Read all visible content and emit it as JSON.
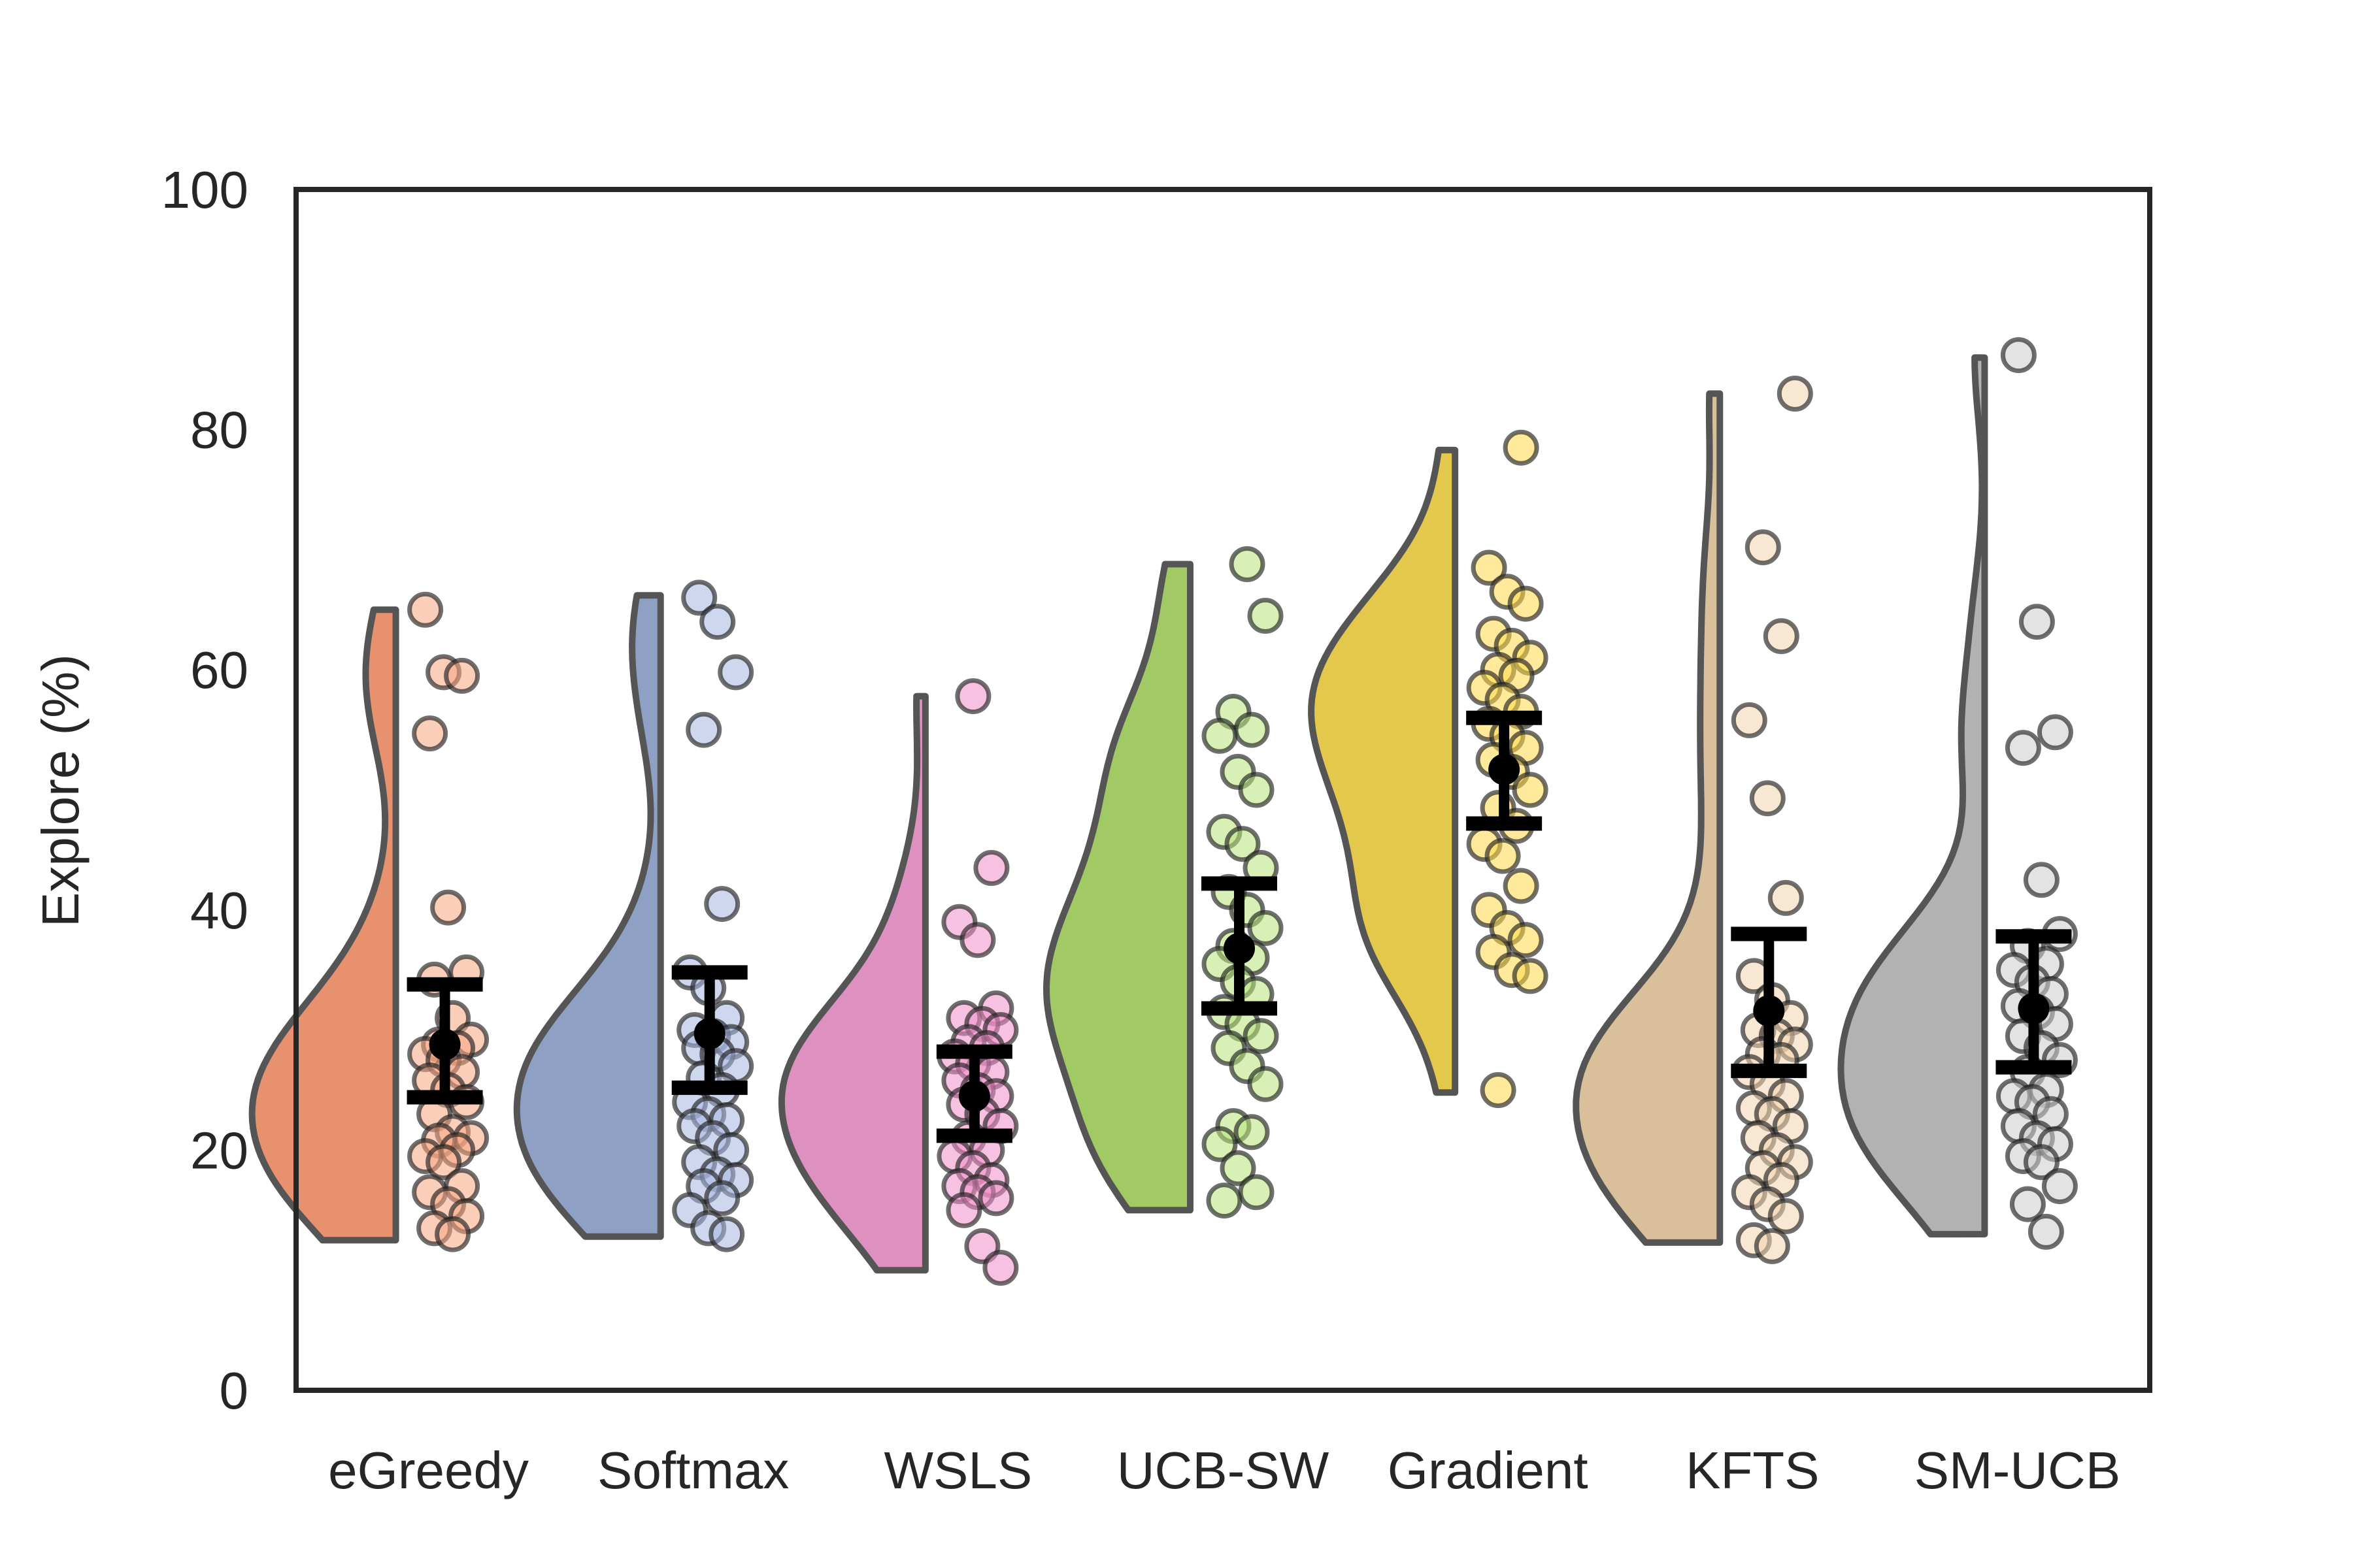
{
  "chart_data": {
    "type": "raincloud",
    "ylabel": "Explore (%)",
    "xlabel": "",
    "ylim": [
      0,
      100
    ],
    "yticks": [
      0,
      20,
      40,
      60,
      80,
      100
    ],
    "grid": false,
    "categories": [
      "eGreedy",
      "Softmax",
      "WSLS",
      "UCB-SW",
      "Gradient",
      "KFTS",
      "SM-UCB"
    ],
    "groups": [
      {
        "name": "eGreedy",
        "color": "#E8916E",
        "point_color": "#F7A582",
        "range": [
          12.5,
          65.0
        ],
        "mean": 28.8,
        "err_low": 24.4,
        "err_high": 33.8,
        "points": [
          65.0,
          59.8,
          59.5,
          54.7,
          40.2,
          34.8,
          34.2,
          31.0,
          29.2,
          28.8,
          28.5,
          28.0,
          27.5,
          26.5,
          25.8,
          25.0,
          24.0,
          23.0,
          21.5,
          21.0,
          20.8,
          20.0,
          19.5,
          19.0,
          17.0,
          16.5,
          15.5,
          14.5,
          13.5,
          13.0
        ]
      },
      {
        "name": "Softmax",
        "color": "#8FA0C5",
        "point_color": "#A8B7E0",
        "range": [
          12.8,
          66.2
        ],
        "mean": 29.7,
        "err_low": 25.2,
        "err_high": 34.8,
        "points": [
          66.0,
          64.0,
          59.8,
          55.0,
          40.5,
          34.8,
          33.5,
          31.0,
          30.0,
          29.5,
          29.0,
          28.5,
          28.0,
          27.0,
          26.0,
          25.0,
          24.0,
          23.0,
          22.5,
          22.0,
          21.0,
          20.0,
          19.0,
          18.0,
          17.5,
          17.0,
          16.0,
          15.0,
          13.5,
          13.0
        ]
      },
      {
        "name": "WSLS",
        "color": "#DE91C0",
        "point_color": "#F08FC8",
        "range": [
          10.0,
          57.8
        ],
        "mean": 24.5,
        "err_low": 21.2,
        "err_high": 28.2,
        "points": [
          57.8,
          43.5,
          39.0,
          37.5,
          31.8,
          31.0,
          30.5,
          30.0,
          29.0,
          28.5,
          27.8,
          27.2,
          26.5,
          25.8,
          25.0,
          24.5,
          23.8,
          23.0,
          22.0,
          21.0,
          20.0,
          19.5,
          18.5,
          17.5,
          17.0,
          16.5,
          16.0,
          15.0,
          12.0,
          10.2
        ]
      },
      {
        "name": "UCB-SW",
        "color": "#A1C964",
        "point_color": "#B8E47A",
        "range": [
          15.0,
          68.8
        ],
        "mean": 36.8,
        "err_low": 31.8,
        "err_high": 42.2,
        "points": [
          68.8,
          64.5,
          56.5,
          55.0,
          54.5,
          51.5,
          50.0,
          46.5,
          45.5,
          43.5,
          41.5,
          40.0,
          38.5,
          37.0,
          36.0,
          35.5,
          34.0,
          33.0,
          31.5,
          30.5,
          29.5,
          28.5,
          27.0,
          25.5,
          22.0,
          21.5,
          20.5,
          18.5,
          16.5,
          15.8
        ]
      },
      {
        "name": "Gradient",
        "color": "#E3C84C",
        "point_color": "#FFD84A",
        "range": [
          24.8,
          78.3
        ],
        "mean": 51.7,
        "err_low": 47.2,
        "err_high": 56.0,
        "points": [
          78.5,
          68.5,
          66.5,
          65.5,
          63.0,
          62.0,
          61.0,
          60.0,
          59.5,
          58.5,
          57.5,
          56.5,
          55.5,
          54.5,
          53.5,
          52.5,
          51.5,
          50.0,
          48.5,
          47.0,
          45.5,
          44.5,
          42.0,
          40.0,
          38.5,
          37.5,
          36.5,
          35.0,
          34.5,
          25.0
        ]
      },
      {
        "name": "KFTS",
        "color": "#D9C09A",
        "point_color": "#F2D4AE",
        "range": [
          12.3,
          83.0
        ],
        "mean": 31.6,
        "err_low": 26.6,
        "err_high": 38.0,
        "points": [
          83.0,
          70.2,
          62.8,
          55.8,
          49.3,
          41.0,
          34.5,
          32.5,
          31.0,
          30.0,
          29.5,
          28.8,
          28.0,
          27.5,
          26.5,
          25.5,
          24.5,
          23.5,
          23.0,
          22.0,
          21.0,
          20.0,
          19.0,
          18.5,
          17.5,
          16.5,
          15.5,
          14.5,
          12.5,
          12.0
        ]
      },
      {
        "name": "SM-UCB",
        "color": "#B2B2B2",
        "point_color": "#CCCCCC",
        "range": [
          13.0,
          86.0
        ],
        "mean": 31.8,
        "err_low": 26.9,
        "err_high": 37.8,
        "points": [
          86.2,
          64.0,
          54.8,
          53.5,
          42.5,
          38.0,
          37.0,
          35.5,
          35.0,
          34.0,
          33.0,
          32.0,
          31.5,
          30.5,
          29.5,
          28.5,
          27.5,
          26.5,
          25.0,
          24.5,
          24.0,
          23.0,
          22.0,
          21.0,
          20.5,
          19.5,
          19.0,
          17.0,
          15.5,
          13.2
        ]
      }
    ]
  }
}
